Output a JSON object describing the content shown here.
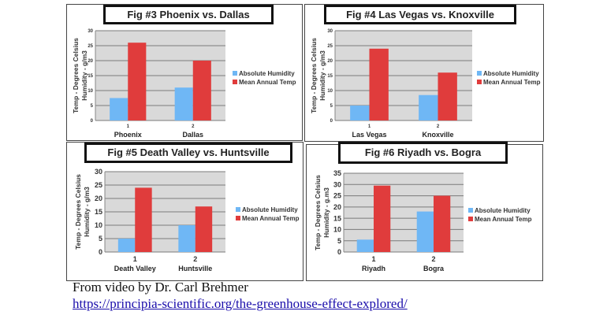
{
  "colors": {
    "humidity": "#6fb7f5",
    "temp": "#e03c3c",
    "plot_bg": "#d9d9d9",
    "grid": "#7a7a7a"
  },
  "chart_data": [
    {
      "type": "bar",
      "title": "Fig #3 Phoenix vs. Dallas",
      "ylabel": "Temp - Degrees Celsius Humidity - g/m3",
      "ylabel_lines": [
        "Temp - Degrees Celsius",
        "Humidity - g/m3"
      ],
      "ylim": [
        0,
        30
      ],
      "yticks": [
        0,
        5,
        10,
        15,
        20,
        25,
        30
      ],
      "tick_numbers": [
        "1",
        "2"
      ],
      "categories": [
        "Phoenix",
        "Dallas"
      ],
      "series": [
        {
          "name": "Absolute Humidity",
          "values": [
            7.5,
            11
          ]
        },
        {
          "name": "Mean Annual Temp",
          "values": [
            26,
            20
          ]
        }
      ],
      "legend": "right"
    },
    {
      "type": "bar",
      "title": "Fig #4 Las Vegas vs. Knoxville",
      "ylabel": "Temp - Degrees Celsius Humidity - g/m3",
      "ylabel_lines": [
        "Temp - Degrees Celsius",
        "Humidity - g/m3"
      ],
      "ylim": [
        0,
        30
      ],
      "yticks": [
        0,
        5,
        10,
        15,
        20,
        25,
        30
      ],
      "tick_numbers": [
        "1",
        "2"
      ],
      "categories": [
        "Las Vegas",
        "Knoxville"
      ],
      "series": [
        {
          "name": "Absolute Humidity",
          "values": [
            5,
            8.5
          ]
        },
        {
          "name": "Mean Annual Temp",
          "values": [
            24,
            16
          ]
        }
      ],
      "legend": "right"
    },
    {
      "type": "bar",
      "title": "Fig #5 Death Valley vs. Huntsville",
      "ylabel": "Temp - Degrees Celsius Humidity - g/m3",
      "ylabel_lines": [
        "Temp - Degrees Celsius",
        "Humidity - g/m3"
      ],
      "ylim": [
        0,
        30
      ],
      "yticks": [
        0,
        5,
        10,
        15,
        20,
        25,
        30
      ],
      "tick_numbers": [
        "1",
        "2"
      ],
      "categories": [
        "Death Valley",
        "Huntsville"
      ],
      "series": [
        {
          "name": "Absolute Humidity",
          "values": [
            5,
            10
          ]
        },
        {
          "name": "Mean Annual Temp",
          "values": [
            24,
            17
          ]
        }
      ],
      "legend": "right"
    },
    {
      "type": "bar",
      "title": "Fig #6 Riyadh vs. Bogra",
      "ylabel": "Temp - Degrees Celsius Humidity - g.m3",
      "ylabel_lines": [
        "Temp - Degrees Celsius",
        "Humidity - g.m3"
      ],
      "ylim": [
        0,
        35
      ],
      "yticks": [
        0,
        5,
        10,
        15,
        20,
        25,
        30,
        35
      ],
      "tick_numbers": [
        "1",
        "2"
      ],
      "categories": [
        "Riyadh",
        "Bogra"
      ],
      "series": [
        {
          "name": "Absolute Humidity",
          "values": [
            5.5,
            18
          ]
        },
        {
          "name": "Mean Annual Temp",
          "values": [
            29.5,
            25
          ]
        }
      ],
      "legend": "right"
    }
  ],
  "caption": {
    "credit": "From video by Dr. Carl Brehmer",
    "link": "https://principia-scientific.org/the-greenhouse-effect-explored/"
  }
}
